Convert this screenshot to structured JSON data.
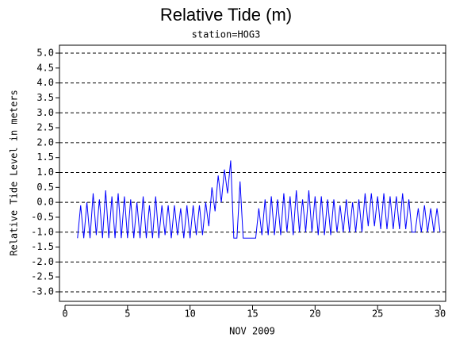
{
  "chart_data": {
    "type": "line",
    "title": "Relative Tide (m)",
    "subtitle": "station=HOG3",
    "x_label": "NOV 2009",
    "y_label": "Relative Tide Level in meters",
    "grid": true,
    "xlim": [
      0,
      30
    ],
    "xticks": [
      0,
      5,
      10,
      15,
      20,
      25,
      30
    ],
    "ylim": [
      -3,
      5
    ],
    "yticks": [
      {
        "value": 5,
        "label": "5.0"
      },
      {
        "value": 4.5,
        "label": "4.5"
      },
      {
        "value": 4,
        "label": "4.0"
      },
      {
        "value": 3.5,
        "label": "3.5"
      },
      {
        "value": 3,
        "label": "3.0"
      },
      {
        "value": 2.5,
        "label": "2.5"
      },
      {
        "value": 2,
        "label": "2.0"
      },
      {
        "value": 1.5,
        "label": "1.5"
      },
      {
        "value": 1,
        "label": "1.0"
      },
      {
        "value": 0.5,
        "label": "0.5"
      },
      {
        "value": 0,
        "label": "0.0"
      },
      {
        "value": -0.5,
        "label": "-0.5"
      },
      {
        "value": -1,
        "label": "-1.0"
      },
      {
        "value": -1.5,
        "label": "-1.5"
      },
      {
        "value": -2,
        "label": "-2.0"
      },
      {
        "value": -2.5,
        "label": "-2.5"
      },
      {
        "value": -3,
        "label": "-3.0"
      }
    ],
    "x": [
      1,
      1.25,
      1.5,
      1.75,
      2,
      2.25,
      2.5,
      2.75,
      3,
      3.25,
      3.5,
      3.75,
      4,
      4.25,
      4.5,
      4.75,
      5,
      5.25,
      5.5,
      5.75,
      6,
      6.25,
      6.5,
      6.75,
      7,
      7.25,
      7.5,
      7.75,
      8,
      8.25,
      8.5,
      8.75,
      9,
      9.25,
      9.5,
      9.75,
      10,
      10.25,
      10.5,
      10.75,
      11,
      11.25,
      11.5,
      11.75,
      12,
      12.25,
      12.5,
      12.75,
      13,
      13.25,
      13.5,
      13.75,
      14,
      14.25,
      14.5,
      14.75,
      15,
      15.25,
      15.5,
      15.75,
      16,
      16.25,
      16.5,
      16.75,
      17,
      17.25,
      17.5,
      17.75,
      18,
      18.25,
      18.5,
      18.75,
      19,
      19.25,
      19.5,
      19.75,
      20,
      20.25,
      20.5,
      20.75,
      21,
      21.25,
      21.5,
      21.75,
      22,
      22.25,
      22.5,
      22.75,
      23,
      23.25,
      23.5,
      23.75,
      24,
      24.25,
      24.5,
      24.75,
      25,
      25.25,
      25.5,
      25.75,
      26,
      26.25,
      26.5,
      26.75,
      27,
      27.25,
      27.5,
      27.75,
      28,
      28.25,
      28.5,
      28.75,
      29,
      29.25,
      29.5,
      29.75,
      30
    ],
    "series": [
      {
        "color": "#0000ff",
        "values": [
          -1.2,
          -0.1,
          -1.2,
          0.0,
          -1.2,
          0.3,
          -1.1,
          0.1,
          -1.2,
          0.4,
          -1.2,
          0.2,
          -1.2,
          0.3,
          -1.2,
          0.2,
          -1.2,
          0.1,
          -1.2,
          0.0,
          -1.2,
          0.2,
          -1.2,
          -0.1,
          -1.2,
          0.2,
          -1.2,
          -0.1,
          -1.1,
          -0.1,
          -1.2,
          -0.1,
          -1.1,
          -0.2,
          -1.2,
          -0.1,
          -1.2,
          -0.1,
          -1.1,
          -0.1,
          -1.1,
          0.0,
          -0.8,
          0.5,
          -0.3,
          0.9,
          0.0,
          1.1,
          0.3,
          1.4,
          -1.2,
          -1.2,
          0.7,
          -1.2,
          -1.2,
          -1.2,
          -1.2,
          -1.2,
          -0.2,
          -1.1,
          0.1,
          -1.1,
          0.2,
          -1.1,
          0.1,
          -1.1,
          0.3,
          -1.0,
          0.2,
          -1.1,
          0.4,
          -1.0,
          0.1,
          -1.0,
          0.4,
          -1.0,
          0.2,
          -1.1,
          0.2,
          -1.1,
          0.1,
          -1.1,
          0.1,
          -1.0,
          -0.1,
          -1.0,
          0.1,
          -1.0,
          0.0,
          -1.0,
          0.1,
          -1.0,
          0.3,
          -0.8,
          0.3,
          -0.8,
          0.2,
          -0.9,
          0.3,
          -0.9,
          0.2,
          -0.9,
          0.2,
          -0.9,
          0.3,
          -0.9,
          0.1,
          -1.0,
          -1.0,
          -0.2,
          -1.0,
          -0.1,
          -1.0,
          -0.2,
          -1.0,
          -0.2,
          -1.0
        ]
      }
    ]
  }
}
